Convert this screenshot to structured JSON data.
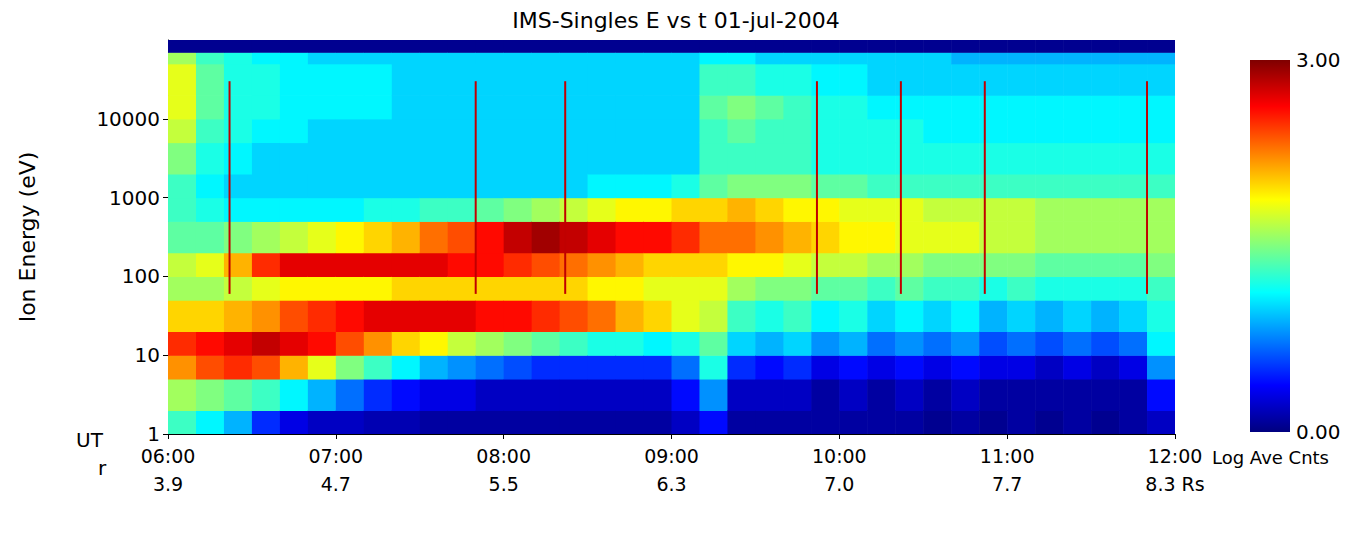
{
  "chart_data": {
    "type": "heatmap",
    "title": "IMS-Singles E vs t 01-jul-2004",
    "x_label": "UT",
    "y_label": "Ion Energy (eV)",
    "log": "y",
    "grid": false,
    "xlim": [
      360,
      720
    ],
    "xticks": [
      {
        "value": 360,
        "label": "06:00"
      },
      {
        "value": 420,
        "label": "07:00"
      },
      {
        "value": 480,
        "label": "08:00"
      },
      {
        "value": 540,
        "label": "09:00"
      },
      {
        "value": 600,
        "label": "10:00"
      },
      {
        "value": 660,
        "label": "11:00"
      },
      {
        "value": 720,
        "label": "12:00"
      }
    ],
    "x_secondary": {
      "label": "r",
      "tick_labels": [
        "3.9",
        "4.7",
        "5.5",
        "6.3",
        "7.0",
        "7.7",
        "8.3 Rs"
      ]
    },
    "ylim": [
      1,
      100000
    ],
    "yticks": [
      1,
      10,
      100,
      1000,
      10000
    ],
    "cells": {
      "time_edges": [
        360,
        370,
        380,
        390,
        400,
        410,
        420,
        430,
        440,
        450,
        460,
        470,
        480,
        490,
        500,
        510,
        520,
        530,
        540,
        550,
        560,
        570,
        580,
        590,
        600,
        610,
        620,
        630,
        640,
        650,
        660,
        670,
        680,
        690,
        700,
        710,
        720
      ],
      "energy_edges": [
        1,
        2,
        5,
        10,
        20,
        50,
        100,
        200,
        500,
        1000,
        2000,
        5000,
        10000,
        20000,
        50000,
        70000,
        100000
      ],
      "values": [
        [
          1.3,
          1.6,
          2.2,
          2.5,
          2.0,
          1.6,
          1.7,
          1.4,
          1.3,
          1.3,
          1.5,
          1.7,
          1.8,
          1.8,
          1.6,
          0.05
        ],
        [
          1.1,
          1.5,
          2.4,
          2.6,
          2.0,
          1.6,
          1.8,
          1.4,
          1.2,
          1.1,
          1.2,
          1.3,
          1.4,
          1.4,
          1.3,
          0.05
        ],
        [
          0.9,
          1.4,
          2.5,
          2.7,
          2.1,
          1.7,
          2.1,
          1.5,
          1.1,
          1.0,
          1.1,
          1.2,
          1.2,
          1.2,
          1.2,
          0.05
        ],
        [
          0.5,
          1.3,
          2.4,
          2.8,
          2.2,
          1.8,
          2.5,
          1.6,
          1.1,
          1.0,
          1.0,
          1.1,
          1.2,
          1.2,
          1.1,
          0.05
        ],
        [
          0.3,
          1.1,
          2.1,
          2.7,
          2.4,
          1.9,
          2.7,
          1.7,
          1.1,
          1.0,
          1.0,
          1.1,
          1.1,
          1.1,
          1.1,
          0.05
        ],
        [
          0.2,
          0.9,
          1.8,
          2.6,
          2.5,
          1.9,
          2.7,
          1.8,
          1.1,
          1.0,
          1.0,
          1.0,
          1.1,
          1.1,
          1.0,
          0.05
        ],
        [
          0.2,
          0.7,
          1.5,
          2.4,
          2.6,
          1.9,
          2.7,
          1.9,
          1.1,
          1.0,
          1.0,
          1.0,
          1.1,
          1.1,
          1.0,
          0.05
        ],
        [
          0.15,
          0.5,
          1.3,
          2.2,
          2.7,
          1.9,
          2.7,
          2.0,
          1.2,
          1.0,
          1.0,
          1.0,
          1.1,
          1.1,
          1.0,
          0.05
        ],
        [
          0.15,
          0.4,
          1.1,
          2.0,
          2.7,
          2.0,
          2.7,
          2.1,
          1.2,
          1.0,
          1.0,
          1.0,
          1.0,
          1.0,
          1.0,
          0.05
        ],
        [
          0.1,
          0.3,
          0.9,
          1.9,
          2.7,
          2.0,
          2.7,
          2.3,
          1.3,
          1.0,
          1.0,
          1.0,
          1.0,
          1.0,
          1.0,
          0.05
        ],
        [
          0.1,
          0.3,
          0.8,
          1.7,
          2.7,
          2.0,
          2.6,
          2.4,
          1.3,
          1.0,
          1.0,
          1.0,
          1.0,
          1.0,
          1.0,
          0.05
        ],
        [
          0.1,
          0.2,
          0.7,
          1.6,
          2.6,
          2.0,
          2.6,
          2.6,
          1.4,
          1.0,
          1.0,
          1.0,
          1.0,
          1.0,
          1.0,
          0.05
        ],
        [
          0.1,
          0.2,
          0.6,
          1.5,
          2.6,
          2.0,
          2.5,
          2.8,
          1.5,
          1.0,
          1.0,
          1.0,
          1.0,
          1.0,
          1.0,
          0.05
        ],
        [
          0.1,
          0.2,
          0.5,
          1.4,
          2.5,
          2.0,
          2.4,
          2.9,
          1.6,
          1.0,
          1.0,
          1.0,
          1.0,
          1.0,
          1.0,
          0.05
        ],
        [
          0.1,
          0.2,
          0.5,
          1.3,
          2.4,
          2.0,
          2.3,
          2.8,
          1.7,
          1.0,
          1.0,
          1.0,
          1.0,
          1.0,
          1.0,
          0.05
        ],
        [
          0.1,
          0.2,
          0.5,
          1.2,
          2.3,
          1.9,
          2.2,
          2.7,
          1.8,
          1.1,
          1.0,
          1.0,
          1.0,
          1.0,
          1.0,
          0.05
        ],
        [
          0.1,
          0.2,
          0.5,
          1.2,
          2.1,
          1.9,
          2.1,
          2.6,
          1.9,
          1.1,
          1.0,
          1.0,
          1.0,
          1.0,
          1.0,
          0.05
        ],
        [
          0.1,
          0.2,
          0.5,
          1.1,
          2.0,
          1.8,
          2.0,
          2.6,
          1.9,
          1.1,
          1.0,
          1.0,
          1.0,
          1.0,
          1.0,
          0.05
        ],
        [
          0.2,
          0.4,
          0.7,
          1.2,
          1.8,
          1.8,
          2.0,
          2.5,
          2.0,
          1.2,
          1.0,
          1.0,
          1.0,
          1.0,
          1.0,
          0.05
        ],
        [
          0.4,
          0.8,
          1.2,
          1.4,
          1.7,
          1.8,
          2.0,
          2.3,
          2.0,
          1.4,
          1.3,
          1.3,
          1.4,
          1.3,
          1.1,
          0.05
        ],
        [
          0.1,
          0.2,
          0.5,
          1.0,
          1.3,
          1.6,
          1.9,
          2.3,
          2.1,
          1.5,
          1.3,
          1.4,
          1.5,
          1.3,
          1.1,
          0.05
        ],
        [
          0.1,
          0.2,
          0.4,
          0.9,
          1.2,
          1.5,
          1.9,
          2.2,
          2.0,
          1.5,
          1.3,
          1.3,
          1.4,
          1.2,
          1.0,
          0.05
        ],
        [
          0.1,
          0.2,
          0.5,
          1.0,
          1.3,
          1.5,
          1.8,
          2.1,
          1.9,
          1.5,
          1.3,
          1.3,
          1.3,
          1.2,
          1.0,
          0.05
        ],
        [
          0.1,
          0.1,
          0.3,
          0.8,
          1.1,
          1.4,
          1.7,
          2.0,
          1.9,
          1.4,
          1.2,
          1.2,
          1.2,
          1.1,
          1.0,
          0.05
        ],
        [
          0.1,
          0.2,
          0.4,
          0.9,
          1.2,
          1.4,
          1.7,
          1.9,
          1.8,
          1.4,
          1.2,
          1.2,
          1.2,
          1.1,
          1.0,
          0.05
        ],
        [
          0.1,
          0.1,
          0.3,
          0.7,
          1.0,
          1.3,
          1.6,
          1.9,
          1.8,
          1.3,
          1.2,
          1.2,
          1.1,
          1.0,
          1.0,
          0.05
        ],
        [
          0.1,
          0.2,
          0.4,
          0.8,
          1.1,
          1.4,
          1.6,
          1.8,
          1.8,
          1.3,
          1.2,
          1.2,
          1.1,
          1.0,
          1.0,
          0.05
        ],
        [
          0.05,
          0.1,
          0.3,
          0.7,
          1.0,
          1.3,
          1.5,
          1.8,
          1.7,
          1.3,
          1.2,
          1.1,
          1.1,
          1.0,
          1.0,
          0.05
        ],
        [
          0.1,
          0.2,
          0.4,
          0.8,
          1.1,
          1.3,
          1.5,
          1.8,
          1.7,
          1.3,
          1.2,
          1.1,
          1.1,
          1.0,
          0.9,
          0.05
        ],
        [
          0.05,
          0.1,
          0.3,
          0.6,
          0.9,
          1.2,
          1.5,
          1.7,
          1.7,
          1.3,
          1.2,
          1.1,
          1.1,
          1.0,
          0.9,
          0.05
        ],
        [
          0.1,
          0.1,
          0.3,
          0.7,
          1.0,
          1.3,
          1.5,
          1.7,
          1.7,
          1.3,
          1.2,
          1.1,
          1.1,
          1.0,
          0.9,
          0.05
        ],
        [
          0.05,
          0.1,
          0.2,
          0.6,
          0.9,
          1.2,
          1.4,
          1.6,
          1.6,
          1.3,
          1.2,
          1.1,
          1.1,
          1.0,
          0.9,
          0.05
        ],
        [
          0.1,
          0.1,
          0.3,
          0.7,
          1.0,
          1.2,
          1.4,
          1.6,
          1.6,
          1.3,
          1.2,
          1.1,
          1.1,
          1.0,
          0.9,
          0.05
        ],
        [
          0.05,
          0.1,
          0.2,
          0.6,
          0.9,
          1.2,
          1.4,
          1.6,
          1.6,
          1.3,
          1.2,
          1.1,
          1.1,
          1.0,
          0.9,
          0.05
        ],
        [
          0.1,
          0.1,
          0.3,
          0.7,
          1.0,
          1.2,
          1.4,
          1.6,
          1.6,
          1.3,
          1.2,
          1.1,
          1.1,
          1.0,
          0.9,
          0.05
        ],
        [
          0.2,
          0.4,
          0.8,
          1.1,
          1.2,
          1.3,
          1.5,
          1.6,
          1.6,
          1.3,
          1.2,
          1.1,
          1.1,
          1.0,
          0.9,
          0.05
        ]
      ]
    },
    "colorbar": {
      "label": "Log Ave Cnts",
      "range": [
        0,
        3
      ],
      "ticks": [
        {
          "value": 0,
          "label": "0.00"
        },
        {
          "value": 3,
          "label": "3.00"
        }
      ]
    },
    "markers": {
      "x": [
        382,
        470,
        502,
        592,
        622,
        652,
        710
      ],
      "y_range": [
        60,
        30000
      ],
      "color": "#c00000"
    }
  }
}
